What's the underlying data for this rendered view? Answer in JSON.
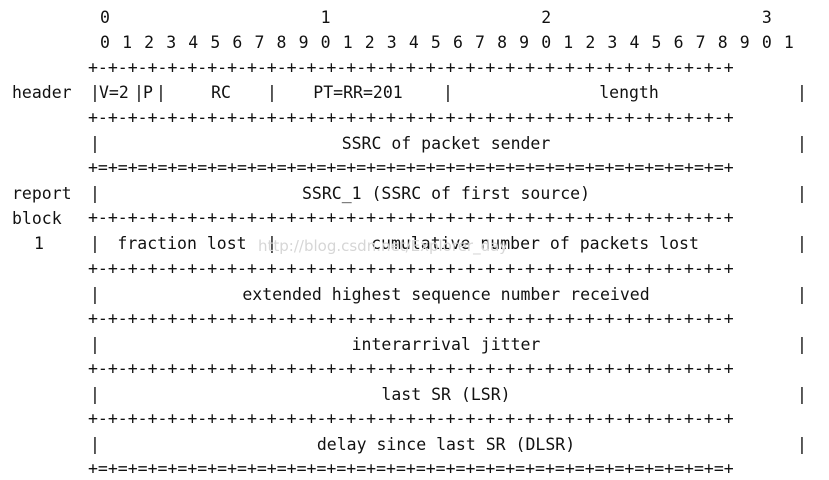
{
  "bit_header": {
    "tens": [
      "0",
      "1",
      "2",
      "3"
    ],
    "units": [
      "0",
      "1",
      "2",
      "3",
      "4",
      "5",
      "6",
      "7",
      "8",
      "9",
      "0",
      "1",
      "2",
      "3",
      "4",
      "5",
      "6",
      "7",
      "8",
      "9",
      "0",
      "1",
      "2",
      "3",
      "4",
      "5",
      "6",
      "7",
      "8",
      "9",
      "0",
      "1"
    ]
  },
  "border_dash": "+-+-+-+-+-+-+-+-+-+-+-+-+-+-+-+-+-+-+-+-+-+-+-+-+-+-+-+-+-+-+-+-+",
  "border_equals": "+=+=+=+=+=+=+=+=+=+=+=+=+=+=+=+=+=+=+=+=+=+=+=+=+=+=+=+=+=+=+=+=+",
  "side_labels": {
    "header": "header",
    "report": "report",
    "block": "block",
    "block_number": "1"
  },
  "fields": {
    "version": "V=2",
    "padding": "P",
    "rc": "RC",
    "pt": "PT=RR=201",
    "length": "length",
    "ssrc_sender": "SSRC of packet sender",
    "ssrc_1": "SSRC_1 (SSRC of first source)",
    "fraction_lost": "fraction lost",
    "cumulative_lost": "cumulative number of packets lost",
    "ext_highest_seq": "extended highest sequence number received",
    "jitter": "interarrival jitter",
    "lsr": "last SR (LSR)",
    "dlsr": "delay since last SR (DLSR)"
  },
  "watermark": "http://blog.csdn.net/Explorer_day"
}
